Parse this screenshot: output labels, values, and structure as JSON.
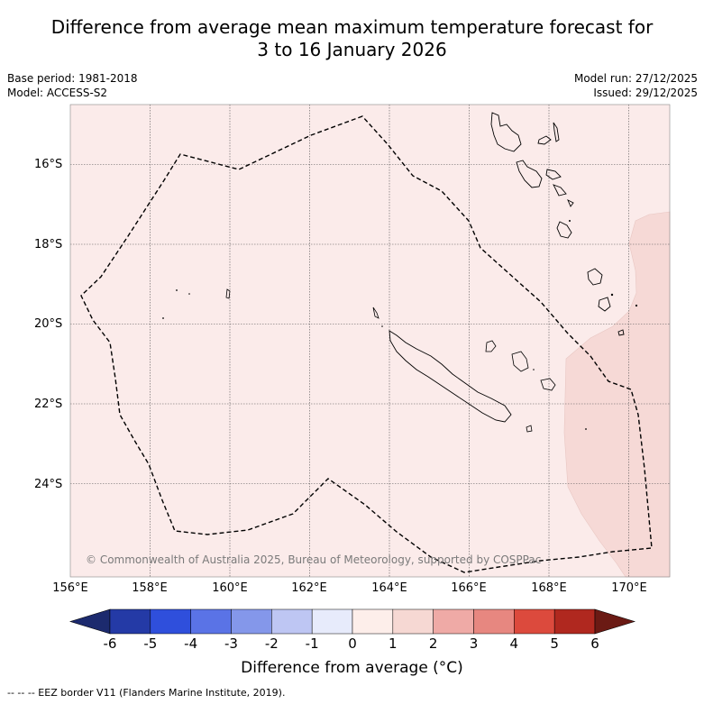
{
  "title": {
    "line1": "Difference from average mean maximum temperature forecast for",
    "line2": "3 to 16 January 2026"
  },
  "meta": {
    "base_period": "Base period: 1981-2018",
    "model": "Model: ACCESS-S2",
    "model_run": "Model run: 27/12/2025",
    "issued": "Issued: 29/12/2025"
  },
  "axes": {
    "lat_labels": [
      "16°S",
      "18°S",
      "20°S",
      "22°S",
      "24°S"
    ],
    "lon_labels": [
      "156°E",
      "158°E",
      "160°E",
      "162°E",
      "164°E",
      "166°E",
      "168°E",
      "170°E"
    ]
  },
  "copyright": "© Commonwealth of Australia 2025, Bureau of Meteorology, supported by COSPPac",
  "colorbar": {
    "ticks": [
      "-6",
      "-5",
      "-4",
      "-3",
      "-2",
      "-1",
      "0",
      "1",
      "2",
      "3",
      "4",
      "5",
      "6"
    ],
    "colors": [
      "#243aa6",
      "#2f4fdc",
      "#5a73e6",
      "#8497ea",
      "#bec6f3",
      "#e7ebfb",
      "#fdeeea",
      "#f6d8d3",
      "#efaaa6",
      "#e78780",
      "#dc4a3d",
      "#b0281f"
    ],
    "extend_low_color": "#1c2a6e",
    "extend_high_color": "#6b1a14",
    "label": "Difference from average (°C)"
  },
  "map_fill": {
    "base_color": "#fbebea",
    "east_color": "#f6d9d6",
    "line_color": "#000000"
  },
  "eez_note": "-- -- -- EEZ border V11 (Flanders Marine Institute, 2019)."
}
